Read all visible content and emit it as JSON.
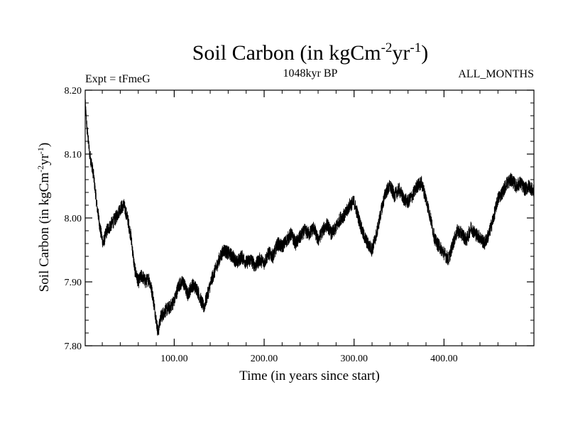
{
  "chart_data": {
    "type": "line",
    "title": {
      "main": "Soil Carbon (in kgCm",
      "sup1": "-2",
      "mid": "yr",
      "sup2": "-1",
      "end": ")"
    },
    "subtitle_left": "Expt = tFmeG",
    "subtitle_center": "1048kyr BP",
    "subtitle_right": "ALL_MONTHS",
    "xlabel": "Time (in years since start)",
    "ylabel": {
      "main": "Soil Carbon (in kgCm",
      "sup1": "-2",
      "mid": "yr",
      "sup2": "-1",
      "end": ")"
    },
    "xlim": [
      1,
      500
    ],
    "ylim": [
      7.8,
      8.2
    ],
    "x_ticks": [
      {
        "value": 100,
        "label": "100.00"
      },
      {
        "value": 200,
        "label": "200.00"
      },
      {
        "value": 300,
        "label": "300.00"
      },
      {
        "value": 400,
        "label": "400.00"
      }
    ],
    "y_ticks": [
      {
        "value": 7.8,
        "label": "7.80"
      },
      {
        "value": 7.9,
        "label": "7.90"
      },
      {
        "value": 8.0,
        "label": "8.00"
      },
      {
        "value": 8.1,
        "label": "8.10"
      },
      {
        "value": 8.2,
        "label": "8.20"
      }
    ],
    "series": [
      {
        "name": "Soil Carbon",
        "color": "#000000",
        "x": [
          1,
          3,
          6,
          10,
          14,
          18,
          21,
          25,
          30,
          35,
          40,
          44,
          48,
          52,
          56,
          60,
          64,
          68,
          72,
          76,
          80,
          82,
          85,
          90,
          95,
          100,
          105,
          110,
          115,
          120,
          125,
          130,
          133,
          137,
          142,
          146,
          150,
          155,
          160,
          165,
          170,
          175,
          180,
          185,
          190,
          195,
          200,
          205,
          210,
          215,
          220,
          225,
          230,
          235,
          240,
          245,
          250,
          255,
          260,
          265,
          270,
          275,
          280,
          285,
          290,
          295,
          300,
          305,
          310,
          315,
          320,
          325,
          330,
          335,
          340,
          345,
          350,
          355,
          360,
          365,
          370,
          375,
          380,
          385,
          390,
          395,
          400,
          405,
          410,
          415,
          420,
          425,
          430,
          435,
          440,
          445,
          450,
          455,
          460,
          465,
          470,
          475,
          480,
          485,
          490,
          495,
          500
        ],
        "values": [
          8.18,
          8.14,
          8.1,
          8.07,
          8.02,
          7.98,
          7.96,
          7.98,
          7.99,
          8.0,
          8.015,
          8.02,
          8.0,
          7.97,
          7.92,
          7.9,
          7.91,
          7.9,
          7.905,
          7.88,
          7.84,
          7.82,
          7.845,
          7.855,
          7.86,
          7.87,
          7.895,
          7.9,
          7.88,
          7.895,
          7.89,
          7.87,
          7.86,
          7.88,
          7.905,
          7.92,
          7.935,
          7.95,
          7.945,
          7.94,
          7.93,
          7.94,
          7.93,
          7.935,
          7.925,
          7.935,
          7.93,
          7.945,
          7.94,
          7.96,
          7.955,
          7.965,
          7.975,
          7.96,
          7.97,
          7.98,
          7.975,
          7.985,
          7.965,
          7.98,
          7.99,
          7.975,
          7.985,
          8.0,
          8.005,
          8.02,
          8.025,
          8.0,
          7.975,
          7.96,
          7.95,
          7.975,
          8.01,
          8.04,
          8.05,
          8.035,
          8.045,
          8.03,
          8.025,
          8.035,
          8.05,
          8.055,
          8.03,
          8.0,
          7.965,
          7.955,
          7.945,
          7.935,
          7.96,
          7.98,
          7.975,
          7.965,
          7.985,
          7.975,
          7.97,
          7.96,
          7.975,
          8.0,
          8.03,
          8.04,
          8.055,
          8.06,
          8.05,
          8.055,
          8.045,
          8.05,
          8.04
        ],
        "noise_amplitude": 0.011
      }
    ]
  }
}
